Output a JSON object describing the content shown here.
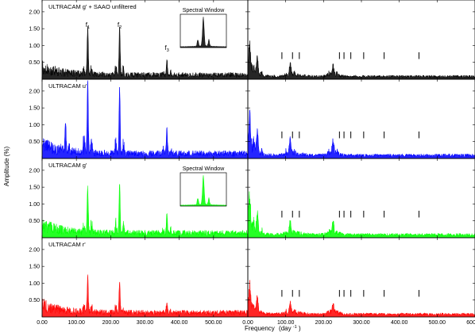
{
  "chart_data": {
    "type": "line",
    "ylabel": "Amplitude (%)",
    "xlabel_main": "Frequency",
    "xlabel_unit": "(day",
    "xlabel_exp": "-1",
    "xlabel_close": ")",
    "xlim": [
      0,
      600
    ],
    "ylim": [
      0,
      2.35
    ],
    "y_ticks": [
      "0.50",
      "1.00",
      "1.50",
      "2.00"
    ],
    "y_tick_values": [
      0.5,
      1.0,
      1.5,
      2.0
    ],
    "x_ticks_left": [
      "0.00",
      "100.00",
      "200.00",
      "300.00",
      "400.00",
      "500.00"
    ],
    "x_ticks_right": [
      "0.00",
      "100.00",
      "200.00",
      "300.00",
      "400.00",
      "500.00",
      "600.00"
    ],
    "x_tick_values": [
      0,
      100,
      200,
      300,
      400,
      500,
      600
    ],
    "peak_labels": [
      {
        "text": "f",
        "sub": "1",
        "x": 133
      },
      {
        "text": "f",
        "sub": "2",
        "x": 226
      },
      {
        "text": "f",
        "sub": "3",
        "x": 364
      }
    ],
    "marker_frequencies": [
      90,
      118,
      136,
      242,
      254,
      272,
      306,
      360,
      452
    ],
    "inset_title": "Spectral Window",
    "panels": [
      {
        "label": "ULTRACAM g' + SAAO unfiltered",
        "color": "#000000",
        "inset": true,
        "peaks": [
          {
            "x": 133,
            "y": 1.45
          },
          {
            "x": 226,
            "y": 1.45
          },
          {
            "x": 364,
            "y": 0.45
          }
        ],
        "right_peaks": [
          {
            "x": 5,
            "y": 0.72
          },
          {
            "x": 25,
            "y": 0.55
          },
          {
            "x": 112,
            "y": 0.35
          },
          {
            "x": 225,
            "y": 0.28
          }
        ]
      },
      {
        "label": "ULTRACAM u'",
        "color": "#0000ff",
        "inset": false,
        "peaks": [
          {
            "x": 133,
            "y": 2.15
          },
          {
            "x": 226,
            "y": 1.95
          },
          {
            "x": 364,
            "y": 0.75
          },
          {
            "x": 68,
            "y": 0.95
          }
        ],
        "right_peaks": [
          {
            "x": 5,
            "y": 0.95
          },
          {
            "x": 25,
            "y": 0.65
          },
          {
            "x": 112,
            "y": 0.45
          },
          {
            "x": 225,
            "y": 0.38
          }
        ]
      },
      {
        "label": "ULTRACAM g'",
        "color": "#00ff00",
        "inset": true,
        "peaks": [
          {
            "x": 133,
            "y": 1.35
          },
          {
            "x": 226,
            "y": 1.45
          },
          {
            "x": 364,
            "y": 0.55
          }
        ],
        "right_peaks": [
          {
            "x": 5,
            "y": 0.85
          },
          {
            "x": 25,
            "y": 0.6
          },
          {
            "x": 112,
            "y": 0.4
          },
          {
            "x": 225,
            "y": 0.32
          }
        ]
      },
      {
        "label": "ULTRACAM r'",
        "color": "#ff0000",
        "inset": false,
        "peaks": [
          {
            "x": 133,
            "y": 1.05
          },
          {
            "x": 226,
            "y": 0.9
          },
          {
            "x": 364,
            "y": 0.35
          }
        ],
        "right_peaks": [
          {
            "x": 5,
            "y": 0.65
          },
          {
            "x": 25,
            "y": 0.45
          },
          {
            "x": 112,
            "y": 0.3
          },
          {
            "x": 225,
            "y": 0.25
          }
        ]
      }
    ]
  }
}
